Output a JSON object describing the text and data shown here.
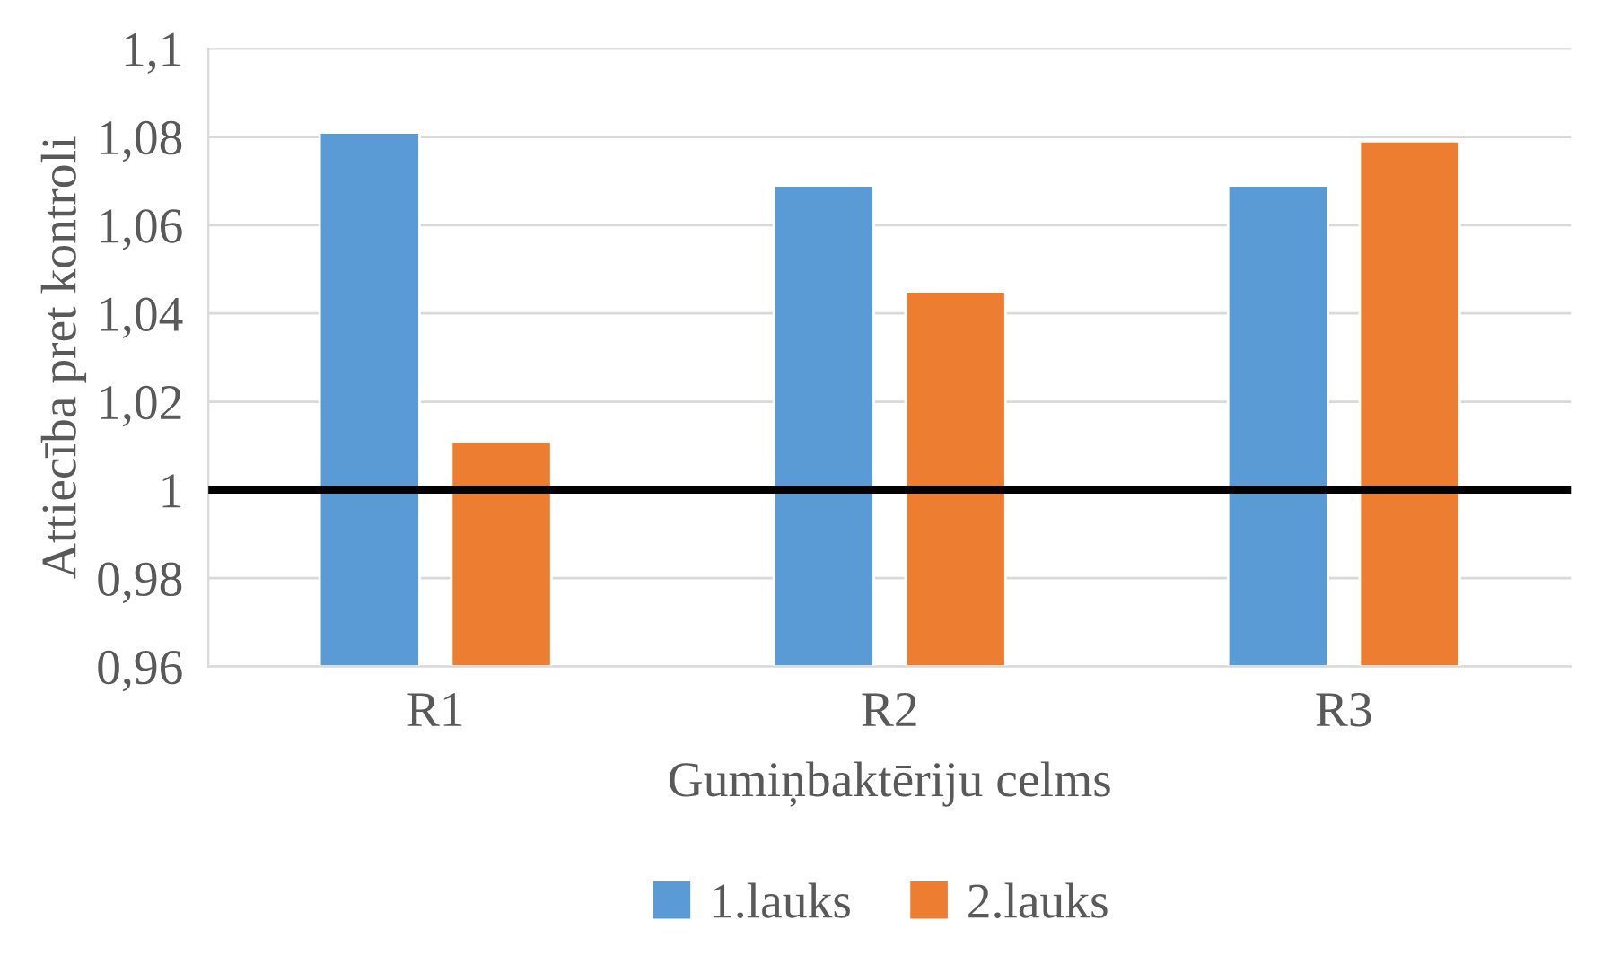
{
  "chart_data": {
    "type": "bar",
    "xlabel": "Gumiņbaktēriju celms",
    "ylabel": "Attiecība pret kontroli",
    "categories": [
      "R1",
      "R2",
      "R3"
    ],
    "series": [
      {
        "name": "1.lauks",
        "color": "#5b9bd5",
        "values": [
          1.081,
          1.069,
          1.069
        ]
      },
      {
        "name": "2.lauks",
        "color": "#ed7d31",
        "values": [
          1.011,
          1.045,
          1.079
        ]
      }
    ],
    "ylim": [
      0.96,
      1.1
    ],
    "yticks": [
      {
        "value": 0.96,
        "label": "0,96"
      },
      {
        "value": 0.98,
        "label": "0,98"
      },
      1,
      {
        "value": 1.02,
        "label": "1,02"
      },
      {
        "value": 1.04,
        "label": "1,04"
      },
      {
        "value": 1.06,
        "label": "1,06"
      },
      {
        "value": 1.08,
        "label": "1,08"
      },
      {
        "value": 1.1,
        "label": "1,1"
      }
    ],
    "ref_lines": [
      {
        "axis": "y",
        "value": 1,
        "color": "#000000"
      }
    ],
    "grid": "y",
    "legend": "bottom"
  }
}
